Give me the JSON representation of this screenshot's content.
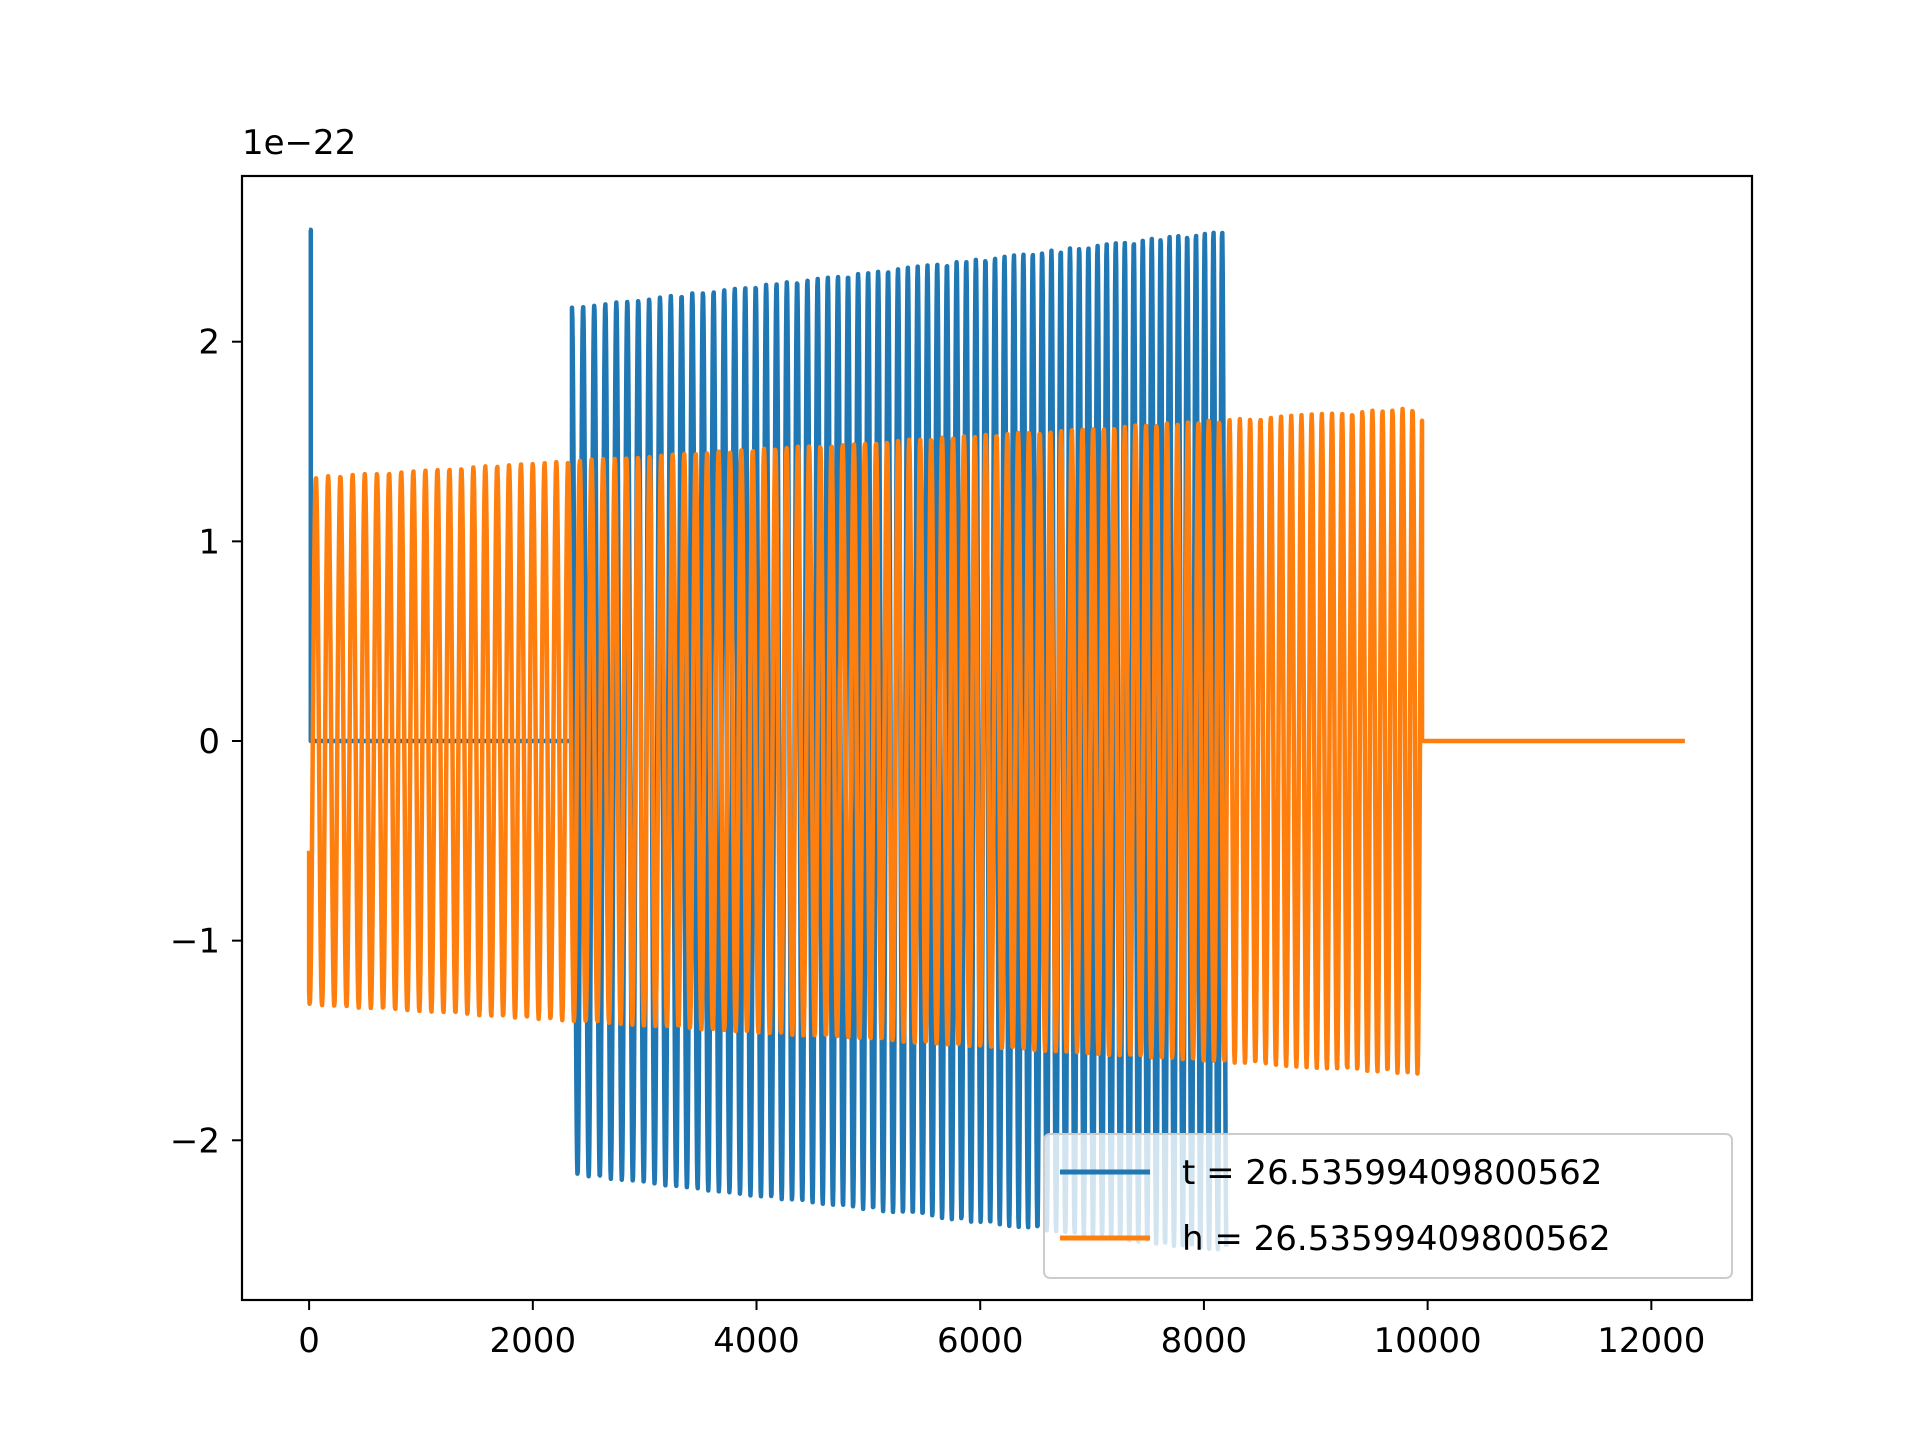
{
  "chart_data": {
    "type": "line",
    "title": "",
    "xlabel": "",
    "ylabel": "",
    "offset_text": "1e−22",
    "xlim": [
      -600,
      12900
    ],
    "ylim": [
      -2.8,
      2.83
    ],
    "x_ticks": [
      0,
      2000,
      4000,
      6000,
      8000,
      10000,
      12000
    ],
    "x_tick_labels": [
      "0",
      "2000",
      "4000",
      "6000",
      "8000",
      "10000",
      "12000"
    ],
    "y_ticks": [
      -2,
      -1,
      0,
      1,
      2
    ],
    "y_tick_labels": [
      "−2",
      "−1",
      "0",
      "1",
      "2"
    ],
    "grid": false,
    "legend_position": "lower right",
    "series": [
      {
        "name": "t = 26.53599409800562",
        "color": "#1f77b4",
        "description_points": {
          "spike_x": 0,
          "spike_y": 2.56,
          "zero_until_x": 2350,
          "burst_start_x": 2350,
          "burst_end_x": 8200,
          "amplitude_start": 2.17,
          "amplitude_end": 2.56,
          "period": 100
        }
      },
      {
        "name": "h = 26.53599409800562",
        "color": "#ff7f0e",
        "description_points": {
          "start_x": 0,
          "start_y": -0.55,
          "oscillation_end_x": 9950,
          "amplitude_start": 1.32,
          "amplitude_end": 1.67,
          "period": 110,
          "flat_end_x": 12300
        }
      }
    ]
  },
  "legend": {
    "items": [
      {
        "label": "t = 26.53599409800562",
        "color": "#1f77b4"
      },
      {
        "label": "h = 26.53599409800562",
        "color": "#ff7f0e"
      }
    ]
  }
}
